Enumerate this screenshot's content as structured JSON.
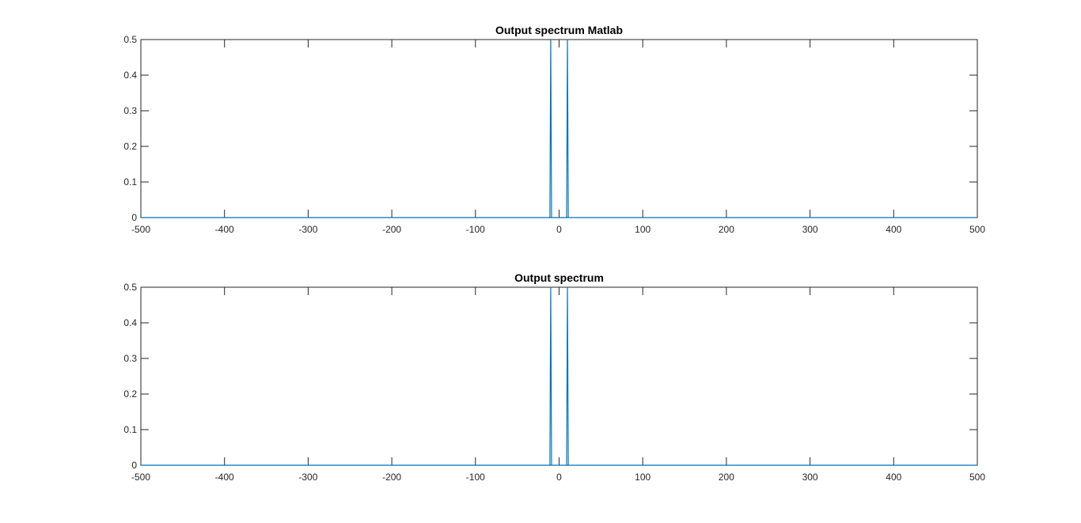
{
  "chart_data": [
    {
      "type": "line",
      "title": "Output spectrum Matlab",
      "xlabel": "",
      "ylabel": "",
      "xlim": [
        -500,
        500
      ],
      "ylim": [
        0,
        0.5
      ],
      "xticks": [
        -500,
        -400,
        -300,
        -200,
        -100,
        0,
        100,
        200,
        300,
        400,
        500
      ],
      "yticks": [
        0,
        0.1,
        0.2,
        0.3,
        0.4,
        0.5
      ],
      "xtick_labels": [
        "-500",
        "-400",
        "-300",
        "-200",
        "-100",
        "0",
        "100",
        "200",
        "300",
        "400",
        "500"
      ],
      "ytick_labels": [
        "0",
        "0.1",
        "0.2",
        "0.3",
        "0.4",
        "0.5"
      ],
      "grid": false,
      "line_color": "#0072BD",
      "series": [
        {
          "x": [
            -500,
            -11,
            -10,
            -9,
            9,
            10,
            11,
            500
          ],
          "y": [
            0,
            0,
            0.5,
            0,
            0,
            0.5,
            0,
            0
          ]
        }
      ]
    },
    {
      "type": "line",
      "title": "Output spectrum",
      "xlabel": "",
      "ylabel": "",
      "xlim": [
        -500,
        500
      ],
      "ylim": [
        0,
        0.5
      ],
      "xticks": [
        -500,
        -400,
        -300,
        -200,
        -100,
        0,
        100,
        200,
        300,
        400,
        500
      ],
      "yticks": [
        0,
        0.1,
        0.2,
        0.3,
        0.4,
        0.5
      ],
      "xtick_labels": [
        "-500",
        "-400",
        "-300",
        "-200",
        "-100",
        "0",
        "100",
        "200",
        "300",
        "400",
        "500"
      ],
      "ytick_labels": [
        "0",
        "0.1",
        "0.2",
        "0.3",
        "0.4",
        "0.5"
      ],
      "grid": false,
      "line_color": "#0072BD",
      "series": [
        {
          "x": [
            -500,
            -11,
            -10,
            -9,
            9,
            10,
            11,
            500
          ],
          "y": [
            0,
            0,
            0.5,
            0,
            0,
            0.5,
            0,
            0
          ]
        }
      ]
    }
  ]
}
